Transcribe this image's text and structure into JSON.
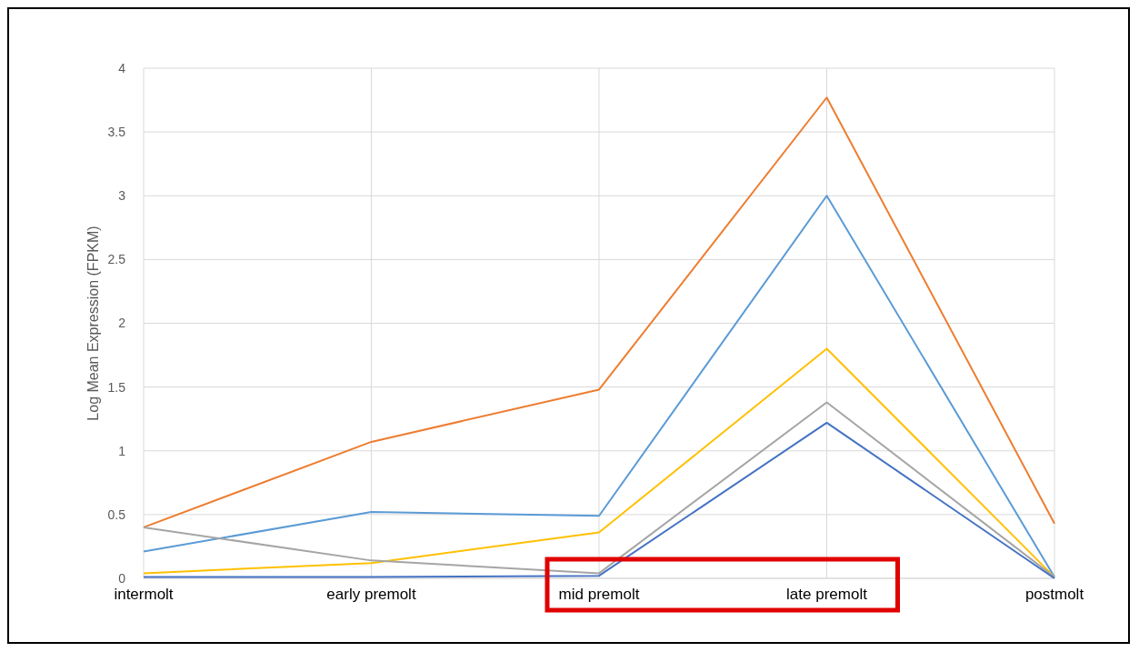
{
  "chart_data": {
    "type": "line",
    "ylabel": "Log Mean Expression (FPKM)",
    "categories": [
      "intermolt",
      "early premolt",
      "mid premolt",
      "late premolt",
      "postmolt"
    ],
    "series": [
      {
        "color": "#ed7d31",
        "values": [
          0.4,
          1.07,
          1.48,
          3.77,
          0.43
        ]
      },
      {
        "color": "#5b9bd5",
        "values": [
          0.21,
          0.52,
          0.49,
          3.0,
          0.01
        ]
      },
      {
        "color": "#ffc000",
        "values": [
          0.04,
          0.12,
          0.36,
          1.8,
          0.01
        ]
      },
      {
        "color": "#a5a5a5",
        "values": [
          0.4,
          0.14,
          0.04,
          1.38,
          0.01
        ]
      },
      {
        "color": "#4472c4",
        "values": [
          0.01,
          0.01,
          0.02,
          1.22,
          0
        ]
      }
    ],
    "ylim": [
      0,
      4
    ],
    "yticks": [
      0,
      0.5,
      1,
      1.5,
      2,
      2.5,
      3,
      3.5,
      4
    ],
    "grid": true,
    "marker": "none",
    "line_style": "solid"
  }
}
